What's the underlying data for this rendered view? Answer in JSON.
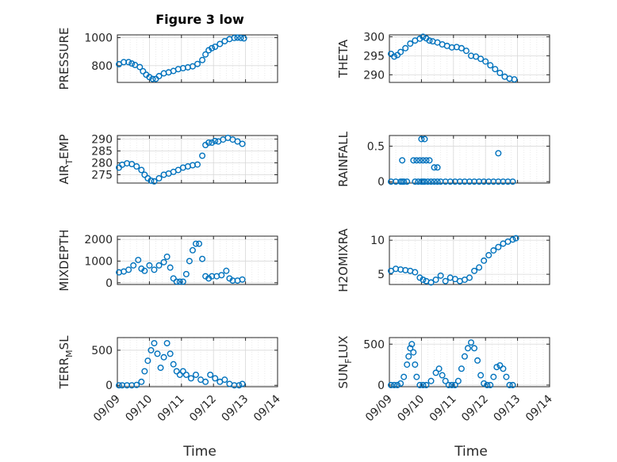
{
  "figure_title": "Figure 3 low",
  "x_axis_label": "Time",
  "x_tick_labels": [
    "09/09",
    "09/10",
    "09/11",
    "09/12",
    "09/13",
    "09/14"
  ],
  "colors": {
    "marker": "#0072BD",
    "grid": "#e6e6e6",
    "axis": "#262626"
  },
  "chart_data": [
    {
      "type": "scatter",
      "title": "Figure 3 low",
      "ylabel": "PRESSURE",
      "ylim": [
        680,
        1020
      ],
      "yticks": [
        800,
        1000
      ],
      "xlim": [
        0,
        5
      ],
      "grid": true,
      "x": [
        0.05,
        0.2,
        0.35,
        0.45,
        0.55,
        0.7,
        0.8,
        0.9,
        1.0,
        1.1,
        1.2,
        1.3,
        1.45,
        1.6,
        1.75,
        1.9,
        2.05,
        2.2,
        2.35,
        2.5,
        2.65,
        2.75,
        2.85,
        2.95,
        3.05,
        3.2,
        3.35,
        3.5,
        3.65,
        3.75,
        3.85,
        3.95
      ],
      "y": [
        810,
        825,
        825,
        815,
        805,
        790,
        760,
        735,
        718,
        705,
        705,
        725,
        745,
        752,
        762,
        775,
        782,
        788,
        795,
        812,
        840,
        880,
        910,
        925,
        935,
        955,
        975,
        990,
        998,
        1000,
        998,
        995
      ]
    },
    {
      "type": "scatter",
      "ylabel": "THETA",
      "ylim": [
        288,
        300.5
      ],
      "yticks": [
        290,
        295,
        300
      ],
      "xlim": [
        0,
        5
      ],
      "grid": true,
      "x": [
        0.05,
        0.15,
        0.25,
        0.35,
        0.5,
        0.65,
        0.8,
        0.95,
        1.05,
        1.15,
        1.25,
        1.35,
        1.5,
        1.65,
        1.8,
        1.95,
        2.1,
        2.25,
        2.4,
        2.55,
        2.7,
        2.85,
        3.0,
        3.15,
        3.3,
        3.45,
        3.6,
        3.75,
        3.9
      ],
      "y": [
        295.5,
        294.8,
        295.2,
        296,
        297,
        298.2,
        299,
        299.5,
        300,
        299.6,
        299,
        298.8,
        298.5,
        298,
        297.6,
        297.2,
        297.3,
        297,
        296.3,
        295,
        294.8,
        294.2,
        293.5,
        292.5,
        291.5,
        290.5,
        289.5,
        289,
        288.8
      ]
    },
    {
      "type": "scatter",
      "ylabel": "AIR_TEMP",
      "ylabel_subscript": "T",
      "ylim": [
        271.5,
        291.5
      ],
      "yticks": [
        275,
        280,
        285,
        290
      ],
      "xlim": [
        0,
        5
      ],
      "grid": true,
      "x": [
        0.05,
        0.15,
        0.3,
        0.45,
        0.6,
        0.75,
        0.85,
        0.95,
        1.05,
        1.15,
        1.3,
        1.45,
        1.6,
        1.75,
        1.9,
        2.05,
        2.2,
        2.35,
        2.5,
        2.65,
        2.75,
        2.85,
        2.95,
        3.05,
        3.15,
        3.3,
        3.45,
        3.6,
        3.75,
        3.9
      ],
      "y": [
        278,
        279.2,
        279.8,
        279.5,
        278.5,
        277,
        275,
        273.5,
        272.5,
        272.2,
        273.5,
        275,
        275.5,
        276.2,
        277,
        278,
        278.5,
        279,
        279.3,
        283,
        287.5,
        288.5,
        288.5,
        289.2,
        289,
        289.8,
        290.5,
        289.8,
        289,
        288
      ]
    },
    {
      "type": "scatter",
      "ylabel": "RAINFALL",
      "ylim": [
        -0.02,
        0.65
      ],
      "yticks": [
        0,
        0.5
      ],
      "ytick_labels": [
        "0",
        "0.5"
      ],
      "xlim": [
        0,
        5
      ],
      "grid": true,
      "x": [
        0.05,
        0.2,
        0.35,
        0.4,
        0.45,
        0.55,
        0.8,
        0.9,
        1.0,
        1.05,
        1.1,
        1.2,
        1.3,
        1.4,
        1.5,
        1.6,
        1.75,
        1.9,
        2.05,
        2.2,
        2.35,
        2.5,
        2.65,
        2.8,
        2.95,
        3.1,
        3.25,
        3.4,
        3.55,
        3.7,
        3.85,
        0.4,
        0.75,
        0.85,
        0.95,
        1.05,
        1.15,
        1.25,
        1.4,
        1.5,
        1.0,
        1.1,
        3.4
      ],
      "y": [
        0,
        0,
        0,
        0,
        0,
        0,
        0,
        0,
        0,
        0,
        0,
        0,
        0,
        0,
        0,
        0,
        0,
        0,
        0,
        0,
        0,
        0,
        0,
        0,
        0,
        0,
        0,
        0,
        0,
        0,
        0,
        0.3,
        0.3,
        0.3,
        0.3,
        0.3,
        0.3,
        0.3,
        0.2,
        0.2,
        0.6,
        0.6,
        0.4
      ]
    },
    {
      "type": "scatter",
      "ylabel": "MIXDEPTH",
      "ylim": [
        -80,
        2150
      ],
      "yticks": [
        0,
        1000,
        2000
      ],
      "xlim": [
        0,
        5
      ],
      "grid": true,
      "x": [
        0.05,
        0.2,
        0.35,
        0.5,
        0.65,
        0.75,
        0.85,
        1.0,
        1.15,
        1.3,
        1.45,
        1.55,
        1.65,
        1.75,
        1.85,
        1.95,
        2.05,
        2.15,
        2.25,
        2.35,
        2.45,
        2.55,
        2.65,
        2.75,
        2.85,
        2.95,
        3.1,
        3.25,
        3.4,
        3.5,
        3.6,
        3.75,
        3.9
      ],
      "y": [
        480,
        520,
        600,
        800,
        1050,
        650,
        550,
        800,
        600,
        800,
        950,
        1200,
        700,
        200,
        50,
        50,
        50,
        400,
        1000,
        1500,
        1800,
        1800,
        1100,
        300,
        200,
        300,
        300,
        350,
        550,
        200,
        100,
        100,
        150
      ]
    },
    {
      "type": "scatter",
      "ylabel": "H2OMIXRA",
      "ylim": [
        3.5,
        10.6
      ],
      "yticks": [
        5,
        10
      ],
      "xlim": [
        0,
        5
      ],
      "grid": true,
      "x": [
        0.05,
        0.2,
        0.35,
        0.5,
        0.65,
        0.8,
        0.95,
        1.05,
        1.15,
        1.3,
        1.45,
        1.6,
        1.75,
        1.9,
        2.05,
        2.2,
        2.35,
        2.5,
        2.65,
        2.8,
        2.95,
        3.1,
        3.25,
        3.4,
        3.55,
        3.7,
        3.85,
        3.95
      ],
      "y": [
        5.5,
        5.8,
        5.7,
        5.6,
        5.5,
        5.3,
        4.5,
        4.2,
        4.0,
        3.8,
        4.2,
        4.8,
        4.0,
        4.5,
        4.3,
        4.0,
        4.2,
        4.5,
        5.5,
        6.0,
        7.0,
        7.8,
        8.5,
        9.0,
        9.5,
        9.8,
        10.1,
        10.3
      ]
    },
    {
      "type": "scatter",
      "ylabel": "TERR_MSL",
      "ylabel_subscript": "M",
      "ylim": [
        -20,
        680
      ],
      "yticks": [
        0,
        500
      ],
      "xlim": [
        0,
        5
      ],
      "grid": true,
      "x": [
        0.05,
        0.15,
        0.3,
        0.45,
        0.6,
        0.75,
        0.85,
        0.95,
        1.05,
        1.15,
        1.25,
        1.35,
        1.45,
        1.55,
        1.65,
        1.75,
        1.85,
        1.95,
        2.05,
        2.15,
        2.3,
        2.45,
        2.6,
        2.75,
        2.9,
        3.05,
        3.2,
        3.35,
        3.5,
        3.65,
        3.8,
        3.9
      ],
      "y": [
        0,
        0,
        0,
        0,
        5,
        50,
        200,
        350,
        500,
        600,
        450,
        250,
        400,
        600,
        450,
        300,
        200,
        150,
        200,
        150,
        100,
        150,
        80,
        50,
        150,
        100,
        50,
        80,
        20,
        0,
        0,
        20
      ]
    },
    {
      "type": "scatter",
      "ylabel": "SUN_FLUX",
      "ylabel_subscript": "F",
      "ylim": [
        -20,
        580
      ],
      "yticks": [
        0,
        500
      ],
      "xlim": [
        0,
        5
      ],
      "grid": true,
      "x": [
        0.05,
        0.15,
        0.25,
        0.35,
        0.45,
        0.55,
        0.6,
        0.65,
        0.7,
        0.75,
        0.8,
        0.85,
        0.95,
        1.05,
        1.15,
        1.3,
        1.45,
        1.55,
        1.65,
        1.75,
        1.85,
        1.95,
        2.05,
        2.15,
        2.25,
        2.35,
        2.45,
        2.55,
        2.65,
        2.75,
        2.85,
        2.95,
        3.05,
        3.15,
        3.25,
        3.35,
        3.45,
        3.55,
        3.65,
        3.75,
        3.85
      ],
      "y": [
        0,
        0,
        0,
        20,
        100,
        250,
        350,
        450,
        500,
        400,
        250,
        100,
        0,
        0,
        0,
        50,
        150,
        200,
        120,
        50,
        0,
        0,
        0,
        50,
        200,
        350,
        450,
        520,
        450,
        300,
        120,
        20,
        0,
        0,
        100,
        220,
        240,
        200,
        100,
        0,
        0
      ]
    }
  ]
}
